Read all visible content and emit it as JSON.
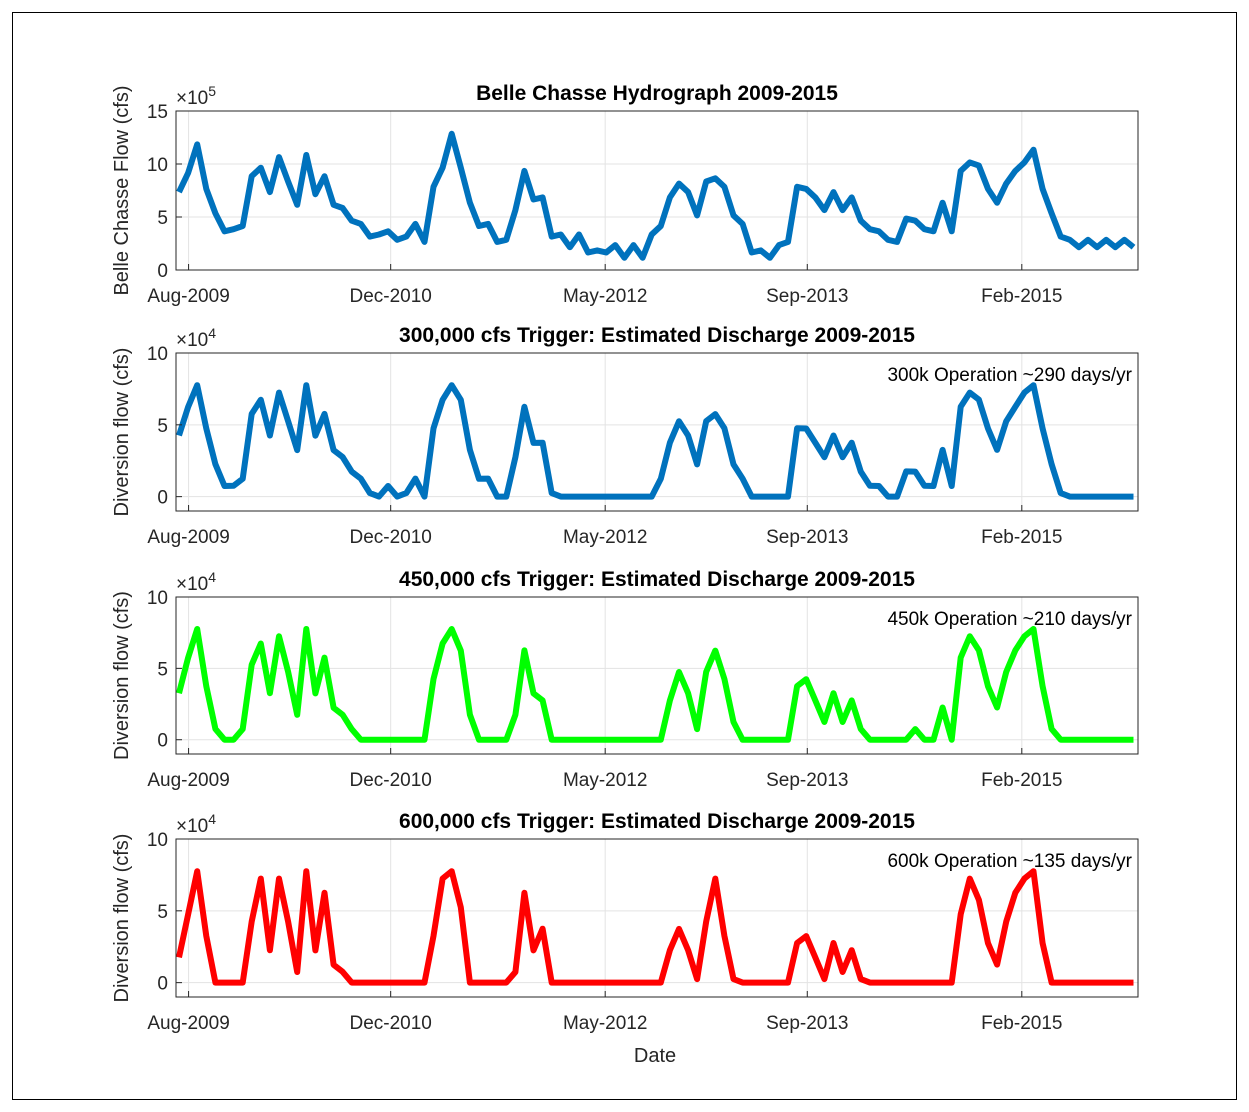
{
  "figure": {
    "xlabel": "Date"
  },
  "chart_data": [
    {
      "type": "line",
      "title": "Belle Chasse Hydrograph 2009-2015",
      "ylabel": "Belle Chasse Flow (cfs)",
      "exponent": "5",
      "xlabel": "",
      "xticks": [
        "Aug-2009",
        "Dec-2010",
        "May-2012",
        "Sep-2013",
        "Feb-2015"
      ],
      "yticks": [
        0,
        5,
        10,
        15
      ],
      "ylim": [
        0,
        15
      ],
      "xlim_years": [
        2009.5,
        2015.85
      ],
      "grid": true,
      "annotation": "",
      "series": [
        {
          "color": "#0072BD",
          "x": [
            2009.52,
            2009.58,
            2009.64,
            2009.7,
            2009.76,
            2009.82,
            2009.88,
            2009.94,
            2010.0,
            2010.06,
            2010.12,
            2010.18,
            2010.24,
            2010.3,
            2010.36,
            2010.42,
            2010.48,
            2010.54,
            2010.6,
            2010.66,
            2010.72,
            2010.78,
            2010.84,
            2010.9,
            2010.96,
            2011.02,
            2011.08,
            2011.14,
            2011.2,
            2011.26,
            2011.32,
            2011.38,
            2011.44,
            2011.5,
            2011.56,
            2011.62,
            2011.68,
            2011.74,
            2011.8,
            2011.86,
            2011.92,
            2011.98,
            2012.04,
            2012.1,
            2012.16,
            2012.22,
            2012.28,
            2012.34,
            2012.4,
            2012.46,
            2012.52,
            2012.58,
            2012.64,
            2012.7,
            2012.76,
            2012.82,
            2012.88,
            2012.94,
            2013.0,
            2013.06,
            2013.12,
            2013.18,
            2013.24,
            2013.3,
            2013.36,
            2013.42,
            2013.48,
            2013.54,
            2013.6,
            2013.66,
            2013.72,
            2013.78,
            2013.84,
            2013.9,
            2013.96,
            2014.02,
            2014.08,
            2014.14,
            2014.2,
            2014.26,
            2014.32,
            2014.38,
            2014.44,
            2014.5,
            2014.56,
            2014.62,
            2014.68,
            2014.74,
            2014.8,
            2014.86,
            2014.92,
            2014.98,
            2015.04,
            2015.1,
            2015.16,
            2015.22,
            2015.28,
            2015.34,
            2015.4,
            2015.46,
            2015.52,
            2015.58,
            2015.64,
            2015.7,
            2015.76,
            2015.82
          ],
          "y": [
            7.0,
            9.5,
            11.5,
            8.0,
            5.0,
            4.0,
            3.5,
            4.5,
            8.5,
            10.0,
            7.0,
            11.0,
            8.0,
            6.5,
            10.5,
            7.5,
            8.5,
            6.5,
            5.5,
            5.0,
            4.0,
            3.5,
            3.0,
            4.0,
            2.5,
            3.5,
            4.0,
            3.0,
            7.5,
            10.0,
            12.5,
            10.0,
            6.0,
            4.5,
            4.0,
            3.0,
            2.5,
            6.0,
            9.0,
            7.0,
            6.5,
            3.5,
            3.0,
            2.5,
            3.0,
            2.0,
            1.5,
            2.0,
            2.0,
            1.5,
            2.0,
            1.5,
            3.0,
            4.5,
            6.5,
            8.5,
            7.0,
            5.5,
            8.0,
            9.0,
            7.5,
            5.5,
            4.0,
            2.0,
            1.5,
            1.5,
            2.0,
            3.0,
            7.5,
            8.0,
            6.5,
            6.0,
            7.0,
            6.0,
            6.5,
            5.0,
            3.5,
            4.0,
            2.5,
            3.0,
            4.5,
            5.0,
            3.5,
            4.0,
            6.0,
            4.0,
            9.0,
            10.5,
            9.5,
            8.0,
            6.0,
            8.5,
            9.0,
            10.5,
            11.0,
            8.0,
            5.0,
            3.5,
            2.5,
            2.5,
            2.5,
            2.5,
            2.5,
            2.5,
            2.5,
            2.5
          ]
        }
      ]
    },
    {
      "type": "line",
      "title": "300,000 cfs Trigger: Estimated Discharge 2009-2015",
      "ylabel": "Diversion flow (cfs)",
      "exponent": "4",
      "xlabel": "",
      "xticks": [
        "Aug-2009",
        "Dec-2010",
        "May-2012",
        "Sep-2013",
        "Feb-2015"
      ],
      "yticks": [
        0,
        5,
        10
      ],
      "ylim": [
        -1,
        10
      ],
      "xlim_years": [
        2009.5,
        2015.85
      ],
      "grid": true,
      "annotation": "300k Operation ~290 days/yr",
      "series": [
        {
          "color": "#0072BD",
          "x": [
            2009.52,
            2009.58,
            2009.64,
            2009.7,
            2009.76,
            2009.82,
            2009.88,
            2009.94,
            2010.0,
            2010.06,
            2010.12,
            2010.18,
            2010.24,
            2010.3,
            2010.36,
            2010.42,
            2010.48,
            2010.54,
            2010.6,
            2010.66,
            2010.72,
            2010.78,
            2010.84,
            2010.9,
            2010.96,
            2011.02,
            2011.08,
            2011.14,
            2011.2,
            2011.26,
            2011.32,
            2011.38,
            2011.44,
            2011.5,
            2011.56,
            2011.62,
            2011.68,
            2011.74,
            2011.8,
            2011.86,
            2011.92,
            2011.98,
            2012.04,
            2012.1,
            2012.16,
            2012.22,
            2012.28,
            2012.34,
            2012.4,
            2012.46,
            2012.52,
            2012.58,
            2012.64,
            2012.7,
            2012.76,
            2012.82,
            2012.88,
            2012.94,
            2013.0,
            2013.06,
            2013.12,
            2013.18,
            2013.24,
            2013.3,
            2013.36,
            2013.42,
            2013.48,
            2013.54,
            2013.6,
            2013.66,
            2013.72,
            2013.78,
            2013.84,
            2013.9,
            2013.96,
            2014.02,
            2014.08,
            2014.14,
            2014.2,
            2014.26,
            2014.32,
            2014.38,
            2014.44,
            2014.5,
            2014.56,
            2014.62,
            2014.68,
            2014.74,
            2014.8,
            2014.86,
            2014.92,
            2014.98,
            2015.04,
            2015.1,
            2015.16,
            2015.22,
            2015.28,
            2015.34,
            2015.4,
            2015.46,
            2015.52,
            2015.58,
            2015.64,
            2015.7,
            2015.76,
            2015.82
          ],
          "y": [
            4.0,
            6.5,
            7.5,
            5.0,
            2.0,
            1.0,
            0.5,
            1.5,
            5.5,
            7.0,
            4.0,
            7.5,
            5.0,
            3.5,
            7.5,
            4.5,
            5.5,
            3.5,
            2.5,
            2.0,
            1.0,
            0.5,
            0.0,
            1.0,
            0.0,
            0.5,
            1.0,
            0.0,
            4.5,
            7.0,
            7.5,
            7.0,
            3.0,
            1.5,
            1.0,
            0.0,
            0.0,
            3.0,
            6.0,
            4.0,
            3.5,
            0.5,
            0.0,
            0.0,
            0.0,
            0.0,
            0.0,
            0.0,
            0.0,
            0.0,
            0.0,
            0.0,
            0.0,
            1.5,
            3.5,
            5.5,
            4.0,
            2.5,
            5.0,
            6.0,
            4.5,
            2.5,
            1.0,
            0.0,
            0.0,
            0.0,
            0.0,
            0.0,
            4.5,
            5.0,
            3.5,
            3.0,
            4.0,
            3.0,
            3.5,
            2.0,
            0.5,
            1.0,
            0.0,
            0.0,
            1.5,
            2.0,
            0.5,
            1.0,
            3.0,
            1.0,
            6.0,
            7.5,
            6.5,
            5.0,
            3.0,
            5.5,
            6.0,
            7.5,
            7.5,
            5.0,
            2.0,
            0.5,
            0.0,
            0.0,
            0.0,
            0.0,
            0.0,
            0.0,
            0.0,
            0.0
          ]
        }
      ]
    },
    {
      "type": "line",
      "title": "450,000 cfs Trigger: Estimated Discharge 2009-2015",
      "ylabel": "Diversion flow (cfs)",
      "exponent": "4",
      "xlabel": "",
      "xticks": [
        "Aug-2009",
        "Dec-2010",
        "May-2012",
        "Sep-2013",
        "Feb-2015"
      ],
      "yticks": [
        0,
        5,
        10
      ],
      "ylim": [
        -1,
        10
      ],
      "xlim_years": [
        2009.5,
        2015.85
      ],
      "grid": true,
      "annotation": "450k Operation ~210 days/yr",
      "series": [
        {
          "color": "#00FF00",
          "x": [
            2009.52,
            2009.58,
            2009.64,
            2009.7,
            2009.76,
            2009.82,
            2009.88,
            2009.94,
            2010.0,
            2010.06,
            2010.12,
            2010.18,
            2010.24,
            2010.3,
            2010.36,
            2010.42,
            2010.48,
            2010.54,
            2010.6,
            2010.66,
            2010.72,
            2010.78,
            2010.84,
            2010.9,
            2010.96,
            2011.02,
            2011.08,
            2011.14,
            2011.2,
            2011.26,
            2011.32,
            2011.38,
            2011.44,
            2011.5,
            2011.56,
            2011.62,
            2011.68,
            2011.74,
            2011.8,
            2011.86,
            2011.92,
            2011.98,
            2012.04,
            2012.1,
            2012.16,
            2012.22,
            2012.28,
            2012.34,
            2012.4,
            2012.46,
            2012.52,
            2012.58,
            2012.64,
            2012.7,
            2012.76,
            2012.82,
            2012.88,
            2012.94,
            2013.0,
            2013.06,
            2013.12,
            2013.18,
            2013.24,
            2013.3,
            2013.36,
            2013.42,
            2013.48,
            2013.54,
            2013.6,
            2013.66,
            2013.72,
            2013.78,
            2013.84,
            2013.9,
            2013.96,
            2014.02,
            2014.08,
            2014.14,
            2014.2,
            2014.26,
            2014.32,
            2014.38,
            2014.44,
            2014.5,
            2014.56,
            2014.62,
            2014.68,
            2014.74,
            2014.8,
            2014.86,
            2014.92,
            2014.98,
            2015.04,
            2015.1,
            2015.16,
            2015.22,
            2015.28,
            2015.34,
            2015.4,
            2015.46,
            2015.52,
            2015.58,
            2015.64,
            2015.7,
            2015.76,
            2015.82
          ],
          "y": [
            3.0,
            6.0,
            7.5,
            4.0,
            0.5,
            0.0,
            0.0,
            1.0,
            5.0,
            7.0,
            3.0,
            7.5,
            4.5,
            2.0,
            7.5,
            3.5,
            5.5,
            2.5,
            1.5,
            1.0,
            0.0,
            0.0,
            0.0,
            0.0,
            0.0,
            0.0,
            0.0,
            0.0,
            4.0,
            7.0,
            7.5,
            6.5,
            1.5,
            0.0,
            0.0,
            0.0,
            0.0,
            2.0,
            6.0,
            3.5,
            2.5,
            0.0,
            0.0,
            0.0,
            0.0,
            0.0,
            0.0,
            0.0,
            0.0,
            0.0,
            0.0,
            0.0,
            0.0,
            0.0,
            2.5,
            5.0,
            3.0,
            1.0,
            4.5,
            6.5,
            4.0,
            1.5,
            0.0,
            0.0,
            0.0,
            0.0,
            0.0,
            0.0,
            3.5,
            4.5,
            2.5,
            1.5,
            3.0,
            1.5,
            2.5,
            1.0,
            0.0,
            0.0,
            0.0,
            0.0,
            0.0,
            1.0,
            0.0,
            0.0,
            2.0,
            0.0,
            5.5,
            7.5,
            6.0,
            4.0,
            2.0,
            5.0,
            6.0,
            7.5,
            7.5,
            4.0,
            0.5,
            0.0,
            0.0,
            0.0,
            0.0,
            0.0,
            0.0,
            0.0,
            0.0,
            0.0
          ]
        }
      ]
    },
    {
      "type": "line",
      "title": "600,000 cfs Trigger: Estimated Discharge 2009-2015",
      "ylabel": "Diversion flow (cfs)",
      "exponent": "4",
      "xlabel": "Date",
      "xticks": [
        "Aug-2009",
        "Dec-2010",
        "May-2012",
        "Sep-2013",
        "Feb-2015"
      ],
      "yticks": [
        0,
        5,
        10
      ],
      "ylim": [
        -1,
        10
      ],
      "xlim_years": [
        2009.5,
        2015.85
      ],
      "grid": true,
      "annotation": "600k Operation ~135 days/yr",
      "series": [
        {
          "color": "#FF0000",
          "x": [
            2009.52,
            2009.58,
            2009.64,
            2009.7,
            2009.76,
            2009.82,
            2009.88,
            2009.94,
            2010.0,
            2010.06,
            2010.12,
            2010.18,
            2010.24,
            2010.3,
            2010.36,
            2010.42,
            2010.48,
            2010.54,
            2010.6,
            2010.66,
            2010.72,
            2010.78,
            2010.84,
            2010.9,
            2010.96,
            2011.02,
            2011.08,
            2011.14,
            2011.2,
            2011.26,
            2011.32,
            2011.38,
            2011.44,
            2011.5,
            2011.56,
            2011.62,
            2011.68,
            2011.74,
            2011.8,
            2011.86,
            2011.92,
            2011.98,
            2012.04,
            2012.1,
            2012.16,
            2012.22,
            2012.28,
            2012.34,
            2012.4,
            2012.46,
            2012.52,
            2012.58,
            2012.64,
            2012.7,
            2012.76,
            2012.82,
            2012.88,
            2012.94,
            2013.0,
            2013.06,
            2013.12,
            2013.18,
            2013.24,
            2013.3,
            2013.36,
            2013.42,
            2013.48,
            2013.54,
            2013.6,
            2013.66,
            2013.72,
            2013.78,
            2013.84,
            2013.9,
            2013.96,
            2014.02,
            2014.08,
            2014.14,
            2014.2,
            2014.26,
            2014.32,
            2014.38,
            2014.44,
            2014.5,
            2014.56,
            2014.62,
            2014.68,
            2014.74,
            2014.8,
            2014.86,
            2014.92,
            2014.98,
            2015.04,
            2015.1,
            2015.16,
            2015.22,
            2015.28,
            2015.34,
            2015.4,
            2015.46,
            2015.52,
            2015.58,
            2015.64,
            2015.7,
            2015.76,
            2015.82
          ],
          "y": [
            1.5,
            5.0,
            7.5,
            3.5,
            0.0,
            0.0,
            0.0,
            0.0,
            4.0,
            7.5,
            2.0,
            7.5,
            4.0,
            1.0,
            7.5,
            2.5,
            6.0,
            1.5,
            0.5,
            0.0,
            0.0,
            0.0,
            0.0,
            0.0,
            0.0,
            0.0,
            0.0,
            0.0,
            3.0,
            7.5,
            7.5,
            5.5,
            0.0,
            0.0,
            0.0,
            0.0,
            0.0,
            1.0,
            6.0,
            2.5,
            3.5,
            0.0,
            0.0,
            0.0,
            0.0,
            0.0,
            0.0,
            0.0,
            0.0,
            0.0,
            0.0,
            0.0,
            0.0,
            0.0,
            2.0,
            4.0,
            2.0,
            0.5,
            4.0,
            7.5,
            3.0,
            0.5,
            0.0,
            0.0,
            0.0,
            0.0,
            0.0,
            0.0,
            2.5,
            3.5,
            1.5,
            0.5,
            2.5,
            1.0,
            2.0,
            0.5,
            0.0,
            0.0,
            0.0,
            0.0,
            0.0,
            0.0,
            0.0,
            0.0,
            0.0,
            0.0,
            4.5,
            7.5,
            5.5,
            3.0,
            1.0,
            4.5,
            6.0,
            7.5,
            7.5,
            3.0,
            0.0,
            0.0,
            0.0,
            0.0,
            0.0,
            0.0,
            0.0,
            0.0,
            0.0,
            0.0
          ]
        }
      ]
    }
  ]
}
